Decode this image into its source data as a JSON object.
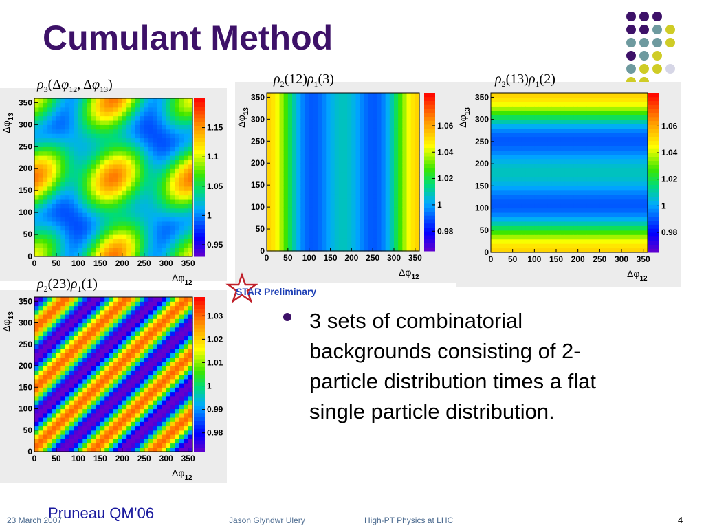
{
  "slide": {
    "title": "Cumulant Method",
    "bullet": "3 sets of combinatorial backgrounds consisting of 2-particle distribution times a flat single particle distribution.",
    "badge": "STAR Preliminary",
    "citation": "Pruneau QM’06",
    "footer": {
      "date": "23 March 2007",
      "author": "Jason Glyndwr Ulery",
      "event": "High-PT Physics at LHC",
      "page": "4"
    }
  },
  "decor": {
    "dot_colors": {
      "purple": "#3d1168",
      "teal": "#6e9a9f",
      "yellow": "#cfcc26",
      "lavender": "#d6d6e6"
    },
    "dot_grid": [
      [
        "purple",
        "purple",
        "purple",
        null
      ],
      [
        "purple",
        "purple",
        "teal",
        "yellow"
      ],
      [
        "teal",
        "teal",
        "teal",
        "yellow"
      ],
      [
        "purple",
        "teal",
        "yellow",
        null
      ],
      [
        "teal",
        "yellow",
        "yellow",
        "lavender"
      ],
      [
        "yellow",
        "yellow",
        null,
        null
      ]
    ]
  },
  "chart_data": [
    {
      "type": "heatmap",
      "title_main": "ρ",
      "title_parts": [
        {
          "text": "ρ",
          "style": "italic"
        },
        {
          "text": "3",
          "style": "sub"
        },
        {
          "text": "(Δ"
        },
        {
          "text": "φ",
          "style": "italic"
        },
        {
          "text": "12",
          "style": "sub"
        },
        {
          "text": ", Δ"
        },
        {
          "text": "φ",
          "style": "italic"
        },
        {
          "text": "13",
          "style": "sub"
        },
        {
          "text": ")"
        }
      ],
      "pattern": "three-particle",
      "xlabel": "Δφ",
      "xlabel_sub": "12",
      "ylabel": "Δφ",
      "ylabel_sub": "13",
      "xlim": [
        0,
        360
      ],
      "ylim": [
        0,
        360
      ],
      "xticks": [
        "0",
        "50",
        "100",
        "150",
        "200",
        "250",
        "300",
        "350"
      ],
      "yticks": [
        "0",
        "50",
        "100",
        "150",
        "200",
        "250",
        "300",
        "350"
      ],
      "zlim": [
        0.93,
        1.2
      ],
      "zticks": [
        "0.95",
        "1",
        "1.05",
        "1.1",
        "1.15"
      ]
    },
    {
      "type": "heatmap",
      "title_parts": [
        {
          "text": "ρ",
          "style": "italic"
        },
        {
          "text": "2",
          "style": "sub"
        },
        {
          "text": "(12)"
        },
        {
          "text": "ρ",
          "style": "italic"
        },
        {
          "text": "1",
          "style": "sub"
        },
        {
          "text": "(3)"
        }
      ],
      "pattern": "vertical-bands",
      "xlabel": "Δφ",
      "xlabel_sub": "12",
      "ylabel": "Δφ",
      "ylabel_sub": "13",
      "xlim": [
        0,
        360
      ],
      "ylim": [
        0,
        360
      ],
      "xticks": [
        "0",
        "50",
        "100",
        "150",
        "200",
        "250",
        "300",
        "350"
      ],
      "yticks": [
        "0",
        "50",
        "100",
        "150",
        "200",
        "250",
        "300",
        "350"
      ],
      "zlim": [
        0.965,
        1.085
      ],
      "zticks": [
        "0.98",
        "1",
        "1.02",
        "1.04",
        "1.06"
      ]
    },
    {
      "type": "heatmap",
      "title_parts": [
        {
          "text": "ρ",
          "style": "italic"
        },
        {
          "text": "2",
          "style": "sub"
        },
        {
          "text": "(13)"
        },
        {
          "text": "ρ",
          "style": "italic"
        },
        {
          "text": "1",
          "style": "sub"
        },
        {
          "text": "(2)"
        }
      ],
      "pattern": "horizontal-bands",
      "xlabel": "Δφ",
      "xlabel_sub": "12",
      "ylabel": "Δφ",
      "ylabel_sub": "13",
      "xlim": [
        0,
        360
      ],
      "ylim": [
        0,
        360
      ],
      "xticks": [
        "0",
        "50",
        "100",
        "150",
        "200",
        "250",
        "300",
        "350"
      ],
      "yticks": [
        "0",
        "50",
        "100",
        "150",
        "200",
        "250",
        "300",
        "350"
      ],
      "zlim": [
        0.965,
        1.085
      ],
      "zticks": [
        "0.98",
        "1",
        "1.02",
        "1.04",
        "1.06"
      ]
    },
    {
      "type": "heatmap",
      "title_parts": [
        {
          "text": "ρ",
          "style": "italic"
        },
        {
          "text": "2",
          "style": "sub"
        },
        {
          "text": "(23)"
        },
        {
          "text": "ρ",
          "style": "italic"
        },
        {
          "text": "1",
          "style": "sub"
        },
        {
          "text": "(1)"
        }
      ],
      "pattern": "diagonal-bands",
      "xlabel": "Δφ",
      "xlabel_sub": "12",
      "ylabel": "Δφ",
      "ylabel_sub": "13",
      "xlim": [
        0,
        360
      ],
      "ylim": [
        0,
        360
      ],
      "xticks": [
        "0",
        "50",
        "100",
        "150",
        "200",
        "250",
        "300",
        "350"
      ],
      "yticks": [
        "0",
        "50",
        "100",
        "150",
        "200",
        "250",
        "300",
        "350"
      ],
      "zlim": [
        0.972,
        1.038
      ],
      "zticks": [
        "0.98",
        "0.99",
        "1",
        "1.01",
        "1.02",
        "1.03"
      ]
    }
  ]
}
